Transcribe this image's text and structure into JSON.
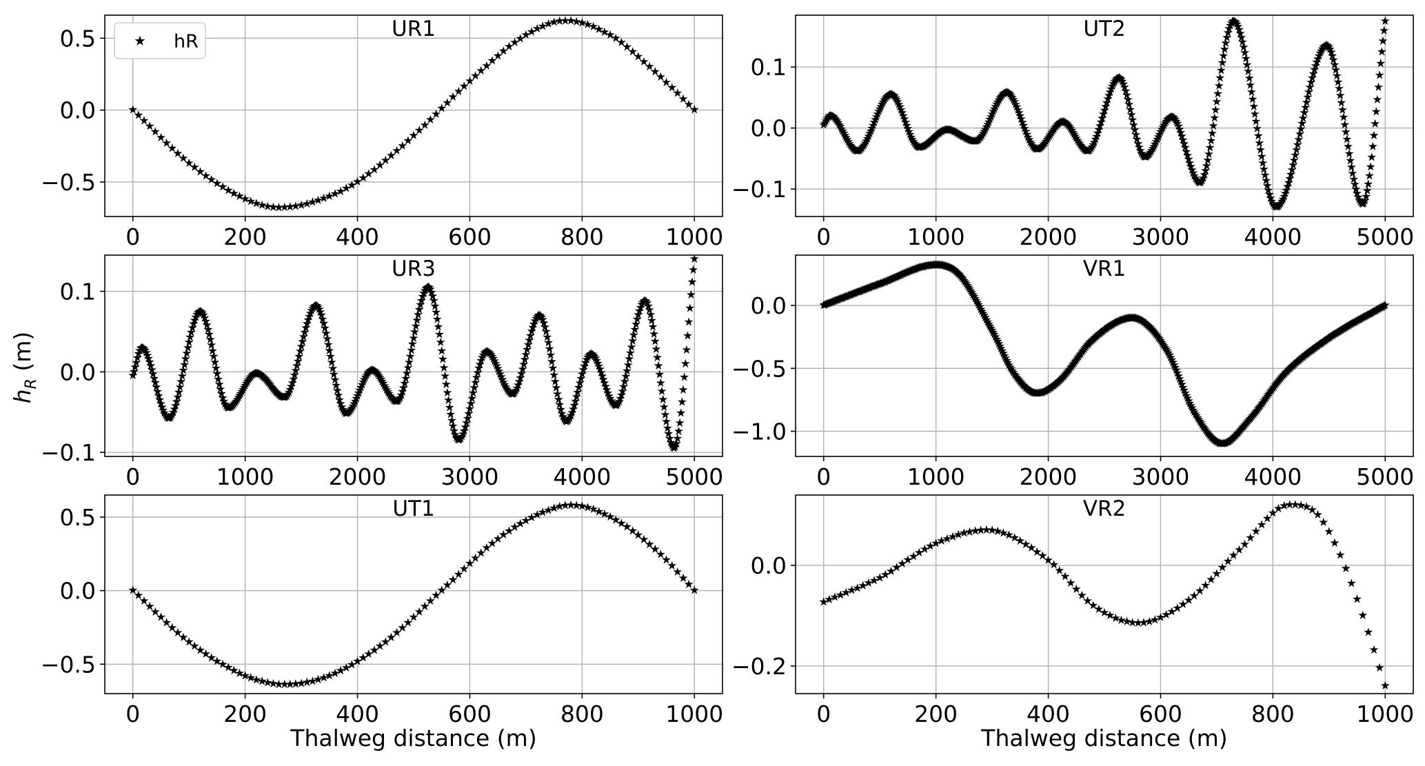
{
  "figure": {
    "ylabel": "h_R (m)",
    "xlabel": "Thalweg distance (m)",
    "legend_label": "hR"
  },
  "chart_data": [
    {
      "type": "scatter",
      "title": "UR1",
      "marker": "star",
      "color": "#000000",
      "xlim": [
        -50,
        1050
      ],
      "ylim": [
        -0.74,
        0.66
      ],
      "xticks": [
        0,
        200,
        400,
        600,
        800,
        1000
      ],
      "yticks": [
        -0.5,
        0.0,
        0.5
      ],
      "ytick_labels": [
        "−0.5",
        "0.0",
        "0.5"
      ],
      "n_points": 100,
      "key_points": [
        [
          0,
          0.0
        ],
        [
          100,
          -0.37
        ],
        [
          200,
          -0.62
        ],
        [
          260,
          -0.68
        ],
        [
          330,
          -0.63
        ],
        [
          400,
          -0.5
        ],
        [
          500,
          -0.18
        ],
        [
          600,
          0.2
        ],
        [
          700,
          0.52
        ],
        [
          770,
          0.62
        ],
        [
          850,
          0.52
        ],
        [
          920,
          0.3
        ],
        [
          1000,
          0.0
        ]
      ],
      "legend": {
        "label": "hR",
        "position": "upper-left"
      }
    },
    {
      "type": "scatter",
      "title": "UT2",
      "marker": "star",
      "color": "#000000",
      "xlim": [
        -250,
        5250
      ],
      "ylim": [
        -0.145,
        0.185
      ],
      "xticks": [
        0,
        1000,
        2000,
        3000,
        4000,
        5000
      ],
      "yticks": [
        -0.1,
        0.0,
        0.1
      ],
      "ytick_labels": [
        "−0.1",
        "0.0",
        "0.1"
      ],
      "n_points": 500,
      "key_points": [
        [
          0,
          0.005
        ],
        [
          60,
          0.02
        ],
        [
          300,
          -0.038
        ],
        [
          600,
          0.055
        ],
        [
          850,
          -0.032
        ],
        [
          1100,
          -0.003
        ],
        [
          1350,
          -0.022
        ],
        [
          1630,
          0.058
        ],
        [
          1900,
          -0.035
        ],
        [
          2130,
          0.01
        ],
        [
          2350,
          -0.038
        ],
        [
          2630,
          0.082
        ],
        [
          2860,
          -0.048
        ],
        [
          3100,
          0.018
        ],
        [
          3350,
          -0.09
        ],
        [
          3650,
          0.175
        ],
        [
          4030,
          -0.13
        ],
        [
          4480,
          0.135
        ],
        [
          4800,
          -0.125
        ],
        [
          5000,
          0.175
        ]
      ]
    },
    {
      "type": "scatter",
      "title": "UR3",
      "marker": "star",
      "color": "#000000",
      "xlim": [
        -250,
        5250
      ],
      "ylim": [
        -0.105,
        0.145
      ],
      "xticks": [
        0,
        1000,
        2000,
        3000,
        4000,
        5000
      ],
      "yticks": [
        -0.1,
        0.0,
        0.1
      ],
      "ytick_labels": [
        "−0.1",
        "0.0",
        "0.1"
      ],
      "n_points": 500,
      "key_points": [
        [
          0,
          -0.005
        ],
        [
          80,
          0.03
        ],
        [
          320,
          -0.058
        ],
        [
          600,
          0.075
        ],
        [
          850,
          -0.045
        ],
        [
          1100,
          -0.002
        ],
        [
          1350,
          -0.032
        ],
        [
          1630,
          0.082
        ],
        [
          1900,
          -0.052
        ],
        [
          2130,
          0.002
        ],
        [
          2350,
          -0.037
        ],
        [
          2630,
          0.105
        ],
        [
          2900,
          -0.085
        ],
        [
          3150,
          0.025
        ],
        [
          3380,
          -0.028
        ],
        [
          3620,
          0.07
        ],
        [
          3860,
          -0.062
        ],
        [
          4080,
          0.022
        ],
        [
          4300,
          -0.042
        ],
        [
          4560,
          0.088
        ],
        [
          4820,
          -0.095
        ],
        [
          5000,
          0.14
        ]
      ]
    },
    {
      "type": "scatter",
      "title": "VR1",
      "marker": "star",
      "color": "#000000",
      "xlim": [
        -250,
        5250
      ],
      "ylim": [
        -1.2,
        0.4
      ],
      "xticks": [
        0,
        1000,
        2000,
        3000,
        4000,
        5000
      ],
      "yticks": [
        -1.0,
        -0.5,
        0.0
      ],
      "ytick_labels": [
        "−1.0",
        "−0.5",
        "0.0"
      ],
      "n_points": 500,
      "key_points": [
        [
          0,
          0.0
        ],
        [
          500,
          0.17
        ],
        [
          1000,
          0.32
        ],
        [
          1200,
          0.25
        ],
        [
          1500,
          -0.2
        ],
        [
          1700,
          -0.55
        ],
        [
          1900,
          -0.7
        ],
        [
          2100,
          -0.6
        ],
        [
          2400,
          -0.27
        ],
        [
          2750,
          -0.1
        ],
        [
          3050,
          -0.35
        ],
        [
          3300,
          -0.85
        ],
        [
          3550,
          -1.1
        ],
        [
          3800,
          -0.9
        ],
        [
          4100,
          -0.55
        ],
        [
          4500,
          -0.26
        ],
        [
          5000,
          0.0
        ]
      ]
    },
    {
      "type": "scatter",
      "title": "UT1",
      "marker": "star",
      "color": "#000000",
      "xlim": [
        -50,
        1050
      ],
      "ylim": [
        -0.7,
        0.65
      ],
      "xticks": [
        0,
        200,
        400,
        600,
        800,
        1000
      ],
      "yticks": [
        -0.5,
        0.0,
        0.5
      ],
      "ytick_labels": [
        "−0.5",
        "0.0",
        "0.5"
      ],
      "n_points": 100,
      "key_points": [
        [
          0,
          0.0
        ],
        [
          100,
          -0.35
        ],
        [
          200,
          -0.58
        ],
        [
          270,
          -0.64
        ],
        [
          350,
          -0.58
        ],
        [
          450,
          -0.35
        ],
        [
          550,
          0.0
        ],
        [
          650,
          0.35
        ],
        [
          730,
          0.53
        ],
        [
          780,
          0.58
        ],
        [
          850,
          0.5
        ],
        [
          930,
          0.28
        ],
        [
          1000,
          0.0
        ]
      ]
    },
    {
      "type": "scatter",
      "title": "VR2",
      "marker": "star",
      "color": "#000000",
      "xlim": [
        -50,
        1050
      ],
      "ylim": [
        -0.255,
        0.14
      ],
      "xticks": [
        0,
        200,
        400,
        600,
        800,
        1000
      ],
      "yticks": [
        -0.2,
        0.0
      ],
      "ytick_labels": [
        "−0.2",
        "0.0"
      ],
      "n_points": 100,
      "key_points": [
        [
          0,
          -0.073
        ],
        [
          100,
          -0.025
        ],
        [
          200,
          0.043
        ],
        [
          290,
          0.07
        ],
        [
          400,
          0.01
        ],
        [
          480,
          -0.08
        ],
        [
          560,
          -0.115
        ],
        [
          650,
          -0.07
        ],
        [
          740,
          0.03
        ],
        [
          830,
          0.12
        ],
        [
          880,
          0.1
        ],
        [
          920,
          0.02
        ],
        [
          960,
          -0.1
        ],
        [
          1000,
          -0.24
        ]
      ]
    }
  ]
}
